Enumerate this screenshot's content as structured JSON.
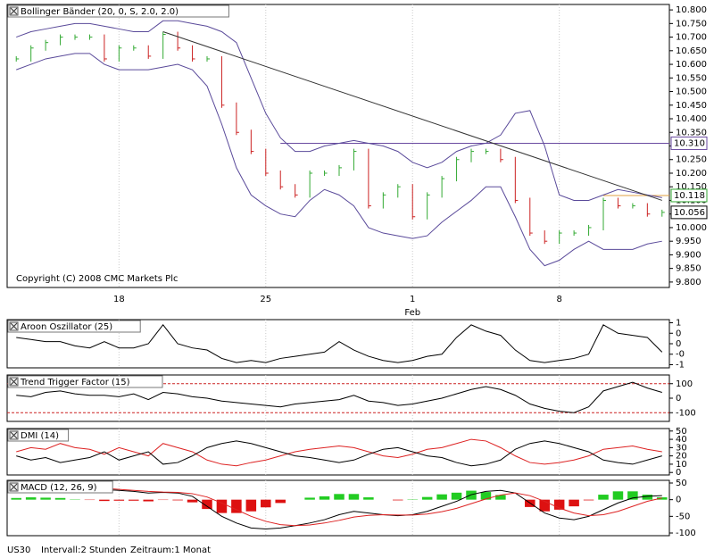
{
  "chart_data": [
    {
      "type": "price",
      "title": "Bollinger Bänder (20, 0, S, 2.0, 2.0)",
      "copyright": "Copyright (C) 2008 CMC Markets Plc",
      "x_label": "Feb",
      "categories": [
        null,
        null,
        null,
        null,
        null,
        null,
        null,
        "18",
        null,
        null,
        null,
        null,
        null,
        null,
        null,
        null,
        null,
        "25",
        null,
        null,
        null,
        null,
        null,
        null,
        null,
        null,
        null,
        "1",
        null,
        null,
        null,
        null,
        null,
        null,
        null,
        null,
        null,
        "8",
        null,
        null,
        null,
        null,
        null,
        null,
        null
      ],
      "close": [
        10.62,
        10.66,
        10.68,
        10.7,
        10.7,
        10.7,
        10.62,
        10.66,
        10.66,
        10.63,
        10.71,
        10.66,
        10.62,
        10.62,
        10.45,
        10.35,
        10.28,
        10.2,
        10.15,
        10.12,
        10.2,
        10.2,
        10.22,
        10.28,
        10.08,
        10.12,
        10.15,
        10.04,
        10.12,
        10.18,
        10.25,
        10.28,
        10.28,
        10.25,
        10.1,
        9.98,
        9.95,
        9.98,
        9.98,
        10.0,
        10.1,
        10.08,
        10.08,
        10.05,
        10.056
      ],
      "up_color": "#33aa33",
      "down_color": "#cc2222",
      "upper": [
        10.7,
        10.72,
        10.73,
        10.74,
        10.75,
        10.75,
        10.74,
        10.73,
        10.72,
        10.72,
        10.76,
        10.76,
        10.75,
        10.74,
        10.72,
        10.68,
        10.55,
        10.42,
        10.33,
        10.28,
        10.28,
        10.3,
        10.31,
        10.32,
        10.31,
        10.3,
        10.28,
        10.24,
        10.22,
        10.24,
        10.28,
        10.3,
        10.31,
        10.34,
        10.42,
        10.43,
        10.3,
        10.12,
        10.1,
        10.1,
        10.12,
        10.14,
        10.13,
        10.12,
        10.11
      ],
      "lower": [
        10.58,
        10.6,
        10.62,
        10.63,
        10.64,
        10.64,
        10.6,
        10.58,
        10.58,
        10.58,
        10.59,
        10.6,
        10.58,
        10.52,
        10.38,
        10.22,
        10.12,
        10.08,
        10.05,
        10.04,
        10.1,
        10.14,
        10.12,
        10.08,
        10.0,
        9.98,
        9.97,
        9.96,
        9.97,
        10.02,
        10.06,
        10.1,
        10.15,
        10.15,
        10.04,
        9.92,
        9.86,
        9.88,
        9.92,
        9.95,
        9.92,
        9.92,
        9.92,
        9.94,
        9.95
      ],
      "band_color": "#5a4a9a",
      "trendline": {
        "x": [
          10,
          44
        ],
        "y": [
          10.72,
          10.1
        ]
      },
      "price_lines": [
        {
          "value": 10.31,
          "label": "10.310",
          "color": "#6a4aa0"
        },
        {
          "value": 10.118,
          "label": "10.118",
          "color": "#33aa33"
        },
        {
          "value": 10.056,
          "label": "10.056",
          "color": "#000000"
        }
      ],
      "ylim": [
        9.78,
        10.82
      ],
      "yticks": [
        {
          "value": 9.8,
          "label": "9.800"
        },
        {
          "value": 9.85,
          "label": "9.850"
        },
        {
          "value": 9.9,
          "label": "9.900"
        },
        {
          "value": 9.95,
          "label": "9.950"
        },
        {
          "value": 10.0,
          "label": "10.000"
        },
        {
          "value": 10.05,
          "label": "10.050"
        },
        {
          "value": 10.1,
          "label": "10.100"
        },
        {
          "value": 10.15,
          "label": "10.150"
        },
        {
          "value": 10.2,
          "label": "10.200"
        },
        {
          "value": 10.25,
          "label": "10.250"
        },
        {
          "value": 10.3,
          "label": "10.300"
        },
        {
          "value": 10.35,
          "label": "10.350"
        },
        {
          "value": 10.4,
          "label": "10.400"
        },
        {
          "value": 10.45,
          "label": "10.450"
        },
        {
          "value": 10.5,
          "label": "10.500"
        },
        {
          "value": 10.55,
          "label": "10.550"
        },
        {
          "value": 10.6,
          "label": "10.600"
        },
        {
          "value": 10.65,
          "label": "10.650"
        },
        {
          "value": 10.7,
          "label": "10.700"
        },
        {
          "value": 10.75,
          "label": "10.750"
        },
        {
          "value": 10.8,
          "label": "10.800"
        }
      ]
    },
    {
      "type": "line",
      "title": "Aroon Oszillator (25)",
      "ylim": [
        -1.15,
        1.15
      ],
      "yticks": [
        {
          "value": 1,
          "label": "1"
        },
        {
          "value": 0.5,
          "label": "0"
        },
        {
          "value": 0,
          "label": "0"
        },
        {
          "value": -0.5,
          "label": "-0"
        },
        {
          "value": -1,
          "label": "-1"
        }
      ],
      "series": [
        {
          "color": "#000000",
          "values": [
            0.3,
            0.2,
            0.1,
            0.1,
            -0.1,
            -0.2,
            0.1,
            -0.2,
            -0.2,
            0.0,
            0.9,
            0.0,
            -0.2,
            -0.3,
            -0.7,
            -0.9,
            -0.8,
            -0.9,
            -0.7,
            -0.6,
            -0.5,
            -0.4,
            0.1,
            -0.3,
            -0.6,
            -0.8,
            -0.9,
            -0.8,
            -0.6,
            -0.5,
            0.3,
            0.9,
            0.6,
            0.4,
            -0.3,
            -0.8,
            -0.9,
            -0.8,
            -0.7,
            -0.5,
            0.9,
            0.5,
            0.4,
            0.3,
            -0.4
          ]
        }
      ]
    },
    {
      "type": "line",
      "title": "Trend Trigger Factor (15)",
      "ylim": [
        -160,
        160
      ],
      "yticks": [
        100,
        0,
        -100
      ],
      "ref_lines": [
        100,
        -100
      ],
      "ref_color": "#cc2222",
      "series": [
        {
          "color": "#000000",
          "values": [
            20,
            10,
            40,
            50,
            30,
            20,
            20,
            10,
            30,
            -10,
            40,
            30,
            10,
            0,
            -20,
            -30,
            -40,
            -50,
            -60,
            -40,
            -30,
            -20,
            -10,
            20,
            -20,
            -30,
            -50,
            -40,
            -20,
            0,
            30,
            60,
            80,
            60,
            20,
            -40,
            -70,
            -90,
            -100,
            -60,
            50,
            80,
            110,
            70,
            40
          ]
        }
      ]
    },
    {
      "type": "line",
      "title": "DMI (14)",
      "ylim": [
        -3,
        53
      ],
      "yticks": [
        50,
        40,
        30,
        20,
        10,
        0
      ],
      "series": [
        {
          "color": "#dd2222",
          "values": [
            25,
            30,
            28,
            35,
            30,
            28,
            22,
            30,
            25,
            20,
            35,
            30,
            25,
            15,
            10,
            8,
            12,
            15,
            20,
            25,
            28,
            30,
            32,
            30,
            25,
            20,
            18,
            22,
            28,
            30,
            35,
            40,
            38,
            30,
            20,
            12,
            10,
            12,
            15,
            20,
            28,
            30,
            32,
            28,
            25
          ]
        },
        {
          "color": "#000000",
          "values": [
            20,
            15,
            18,
            12,
            15,
            18,
            25,
            15,
            20,
            25,
            10,
            12,
            20,
            30,
            35,
            38,
            35,
            30,
            25,
            20,
            18,
            15,
            12,
            15,
            22,
            28,
            30,
            25,
            20,
            18,
            12,
            8,
            10,
            15,
            28,
            35,
            38,
            35,
            30,
            25,
            15,
            12,
            10,
            15,
            20
          ]
        }
      ]
    },
    {
      "type": "macd",
      "title": "MACD (12, 26, 9)",
      "ylim": [
        -108,
        58
      ],
      "yticks": [
        50,
        0,
        -50,
        -100
      ],
      "histogram": [
        5,
        7,
        6,
        5,
        1,
        -1,
        -4,
        -3,
        -3,
        -5,
        -1,
        -2,
        -8,
        -28,
        -40,
        -40,
        -35,
        -23,
        -10,
        0,
        6,
        10,
        17,
        17,
        7,
        0,
        -2,
        1,
        8,
        16,
        21,
        27,
        23,
        14,
        0,
        -22,
        -35,
        -30,
        -20,
        -2,
        15,
        25,
        25,
        15,
        7
      ],
      "pos_color": "#22cc22",
      "neg_color": "#dd1111",
      "series": [
        {
          "color": "#000000",
          "values": [
            30,
            35,
            38,
            40,
            38,
            35,
            30,
            28,
            25,
            20,
            22,
            20,
            10,
            -20,
            -50,
            -70,
            -85,
            -88,
            -85,
            -78,
            -70,
            -60,
            -45,
            -35,
            -40,
            -45,
            -48,
            -45,
            -35,
            -20,
            -5,
            15,
            25,
            28,
            20,
            -10,
            -40,
            -55,
            -60,
            -50,
            -30,
            -10,
            5,
            10,
            12
          ]
        },
        {
          "color": "#dd2222",
          "values": [
            25,
            28,
            32,
            35,
            37,
            36,
            34,
            31,
            28,
            25,
            23,
            22,
            18,
            8,
            -10,
            -30,
            -50,
            -65,
            -75,
            -78,
            -76,
            -70,
            -62,
            -52,
            -47,
            -45,
            -46,
            -46,
            -43,
            -36,
            -26,
            -12,
            2,
            14,
            20,
            12,
            -5,
            -25,
            -40,
            -48,
            -45,
            -35,
            -20,
            -5,
            5
          ]
        }
      ]
    }
  ],
  "footer": {
    "symbol": "US30",
    "interval": "Intervall:2 Stunden",
    "period": "Zeitraum:1 Monat"
  }
}
